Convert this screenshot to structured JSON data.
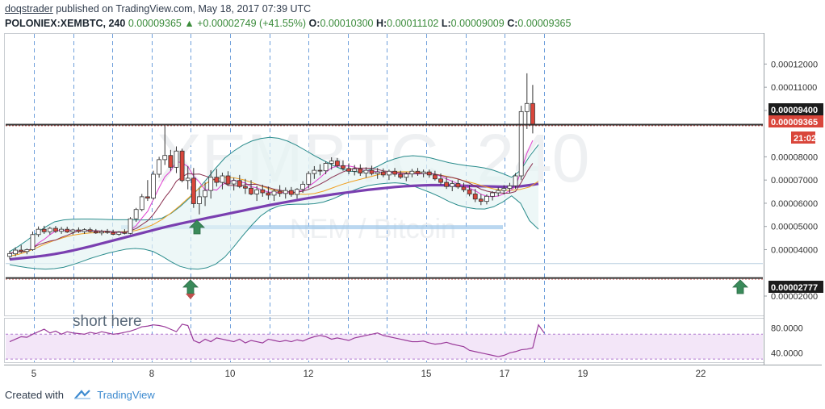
{
  "header": {
    "author": "doqstrader",
    "published_text": "published on TradingView.com, May 18, 2017 07:39 UTC",
    "symbol": "POLONIEX:XEMBTC, 240",
    "last": "0.00009365",
    "change": "+0.00002749 (+41.55%)",
    "o_label": "O:",
    "o_value": "0.00010300",
    "h_label": "H:",
    "h_value": "0.00011102",
    "l_label": "L:",
    "l_value": "0.00009009",
    "c_label": "C:",
    "c_value": "0.00009365",
    "up_arrow_icon": "triangle-up-icon"
  },
  "watermark": {
    "ticker": "XEMBTC, 240",
    "pair": "NEM / Bitcoin"
  },
  "annotation_text": "short here",
  "footer": {
    "created_with": "Created with",
    "brand": "TradingView",
    "logo_icon": "tradingview-cloud-icon"
  },
  "colors": {
    "up_candle": "#ffffff",
    "down_candle": "#d9463b",
    "bollinger": "#2a8c8c",
    "ma_purple": "#7a3fb0",
    "ma_magenta": "#e040d0",
    "ma_orange": "#f0a020",
    "rsi_line": "#9a3a9a",
    "rsi_band": "#f3e6f8",
    "arrow_green": "#3a8a5a",
    "price_label_dark": "#1c1c1c",
    "price_label_red": "#d9463b"
  },
  "chart_data": {
    "type": "candlestick",
    "x_ticks": [
      "5",
      "8",
      "10",
      "12",
      "15",
      "17",
      "19",
      "22"
    ],
    "y_ticks": [
      "0.00012000",
      "0.00011000",
      "0.00010000",
      "0.00008000",
      "0.00007000",
      "0.00006000",
      "0.00005000",
      "0.00004000",
      "0.00002000"
    ],
    "ylim": [
      1.2e-05,
      0.000133
    ],
    "price_labels": [
      {
        "text": "0.00009400",
        "value": 9.4e-05,
        "style": "dark"
      },
      {
        "text": "0.00009365",
        "value": 9.365e-05,
        "style": "red"
      },
      {
        "text": "21:02",
        "value": 9.05e-05,
        "style": "red"
      },
      {
        "text": "0.00002777",
        "value": 2.777e-05,
        "style": "dark"
      }
    ],
    "horizontal_lines": [
      9.39e-05,
      2.777e-05
    ],
    "support_zone": 4.95e-05,
    "light_line": 3.4e-05,
    "candles": [
      [
        3.71e-05,
        3.95e-05,
        3.58e-05,
        3.83e-05
      ],
      [
        3.82e-05,
        4.1e-05,
        3.72e-05,
        3.98e-05
      ],
      [
        3.98e-05,
        4.2e-05,
        3.85e-05,
        3.92e-05
      ],
      [
        3.92e-05,
        4.05e-05,
        3.8e-05,
        4e-05
      ],
      [
        4e-05,
        4.78e-05,
        3.95e-05,
        4.65e-05
      ],
      [
        4.65e-05,
        5e-05,
        4.55e-05,
        4.88e-05
      ],
      [
        4.88e-05,
        5.03e-05,
        4.68e-05,
        4.77e-05
      ],
      [
        4.77e-05,
        4.98e-05,
        4.65e-05,
        4.92e-05
      ],
      [
        4.92e-05,
        5.02e-05,
        4.72e-05,
        4.79e-05
      ],
      [
        4.79e-05,
        4.98e-05,
        4.68e-05,
        4.88e-05
      ],
      [
        4.88e-05,
        4.99e-05,
        4.72e-05,
        4.76e-05
      ],
      [
        4.76e-05,
        4.9e-05,
        4.65e-05,
        4.85e-05
      ],
      [
        4.85e-05,
        4.96e-05,
        4.72e-05,
        4.78e-05
      ],
      [
        4.78e-05,
        4.92e-05,
        4.68e-05,
        4.86e-05
      ],
      [
        4.86e-05,
        4.95e-05,
        4.74e-05,
        4.78e-05
      ],
      [
        4.78e-05,
        4.89e-05,
        4.68e-05,
        4.72e-05
      ],
      [
        4.72e-05,
        4.86e-05,
        4.62e-05,
        4.78e-05
      ],
      [
        4.78e-05,
        4.89e-05,
        4.68e-05,
        4.74e-05
      ],
      [
        4.74e-05,
        4.86e-05,
        4.62e-05,
        4.66e-05
      ],
      [
        4.66e-05,
        4.8e-05,
        4.6e-05,
        4.75e-05
      ],
      [
        4.75e-05,
        4.88e-05,
        4.66e-05,
        4.7e-05
      ],
      [
        4.7e-05,
        5.4e-05,
        4.66e-05,
        5.33e-05
      ],
      [
        5.33e-05,
        5.8e-05,
        5.2e-05,
        5.73e-05
      ],
      [
        5.73e-05,
        6.4e-05,
        5.65e-05,
        6.28e-05
      ],
      [
        6.28e-05,
        7e-05,
        6.1e-05,
        6.22e-05
      ],
      [
        6.22e-05,
        7.4e-05,
        6.15e-05,
        7.25e-05
      ],
      [
        7.25e-05,
        8e-05,
        7.1e-05,
        7.88e-05
      ],
      [
        7.88e-05,
        9.4e-05,
        7.65e-05,
        8.06e-05
      ],
      [
        8.06e-05,
        8.3e-05,
        7.4e-05,
        7.55e-05
      ],
      [
        7.55e-05,
        8.45e-05,
        7.3e-05,
        8.25e-05
      ],
      [
        8.25e-05,
        8.35e-05,
        6.9e-05,
        6.98e-05
      ],
      [
        6.98e-05,
        7.6e-05,
        6.6e-05,
        7.08e-05
      ],
      [
        7.08e-05,
        7.52e-05,
        5.8e-05,
        5.98e-05
      ],
      [
        5.98e-05,
        6.65e-05,
        5.52e-05,
        6.28e-05
      ],
      [
        6.28e-05,
        6.9e-05,
        5.88e-05,
        6.55e-05
      ],
      [
        6.55e-05,
        7.42e-05,
        6.2e-05,
        7.12e-05
      ],
      [
        7.12e-05,
        7.48e-05,
        6.72e-05,
        6.9e-05
      ],
      [
        6.9e-05,
        7.32e-05,
        6.6e-05,
        7.18e-05
      ],
      [
        7.18e-05,
        7.38e-05,
        6.75e-05,
        6.83e-05
      ],
      [
        6.83e-05,
        7.1e-05,
        6.55e-05,
        6.98e-05
      ],
      [
        6.98e-05,
        7.22e-05,
        6.65e-05,
        6.72e-05
      ],
      [
        6.72e-05,
        7.05e-05,
        6.4e-05,
        6.65e-05
      ],
      [
        6.65e-05,
        7e-05,
        6.35e-05,
        6.4e-05
      ],
      [
        6.4e-05,
        6.75e-05,
        6.1e-05,
        6.58e-05
      ],
      [
        6.58e-05,
        6.8e-05,
        6.28e-05,
        6.45e-05
      ],
      [
        6.45e-05,
        6.72e-05,
        6.15e-05,
        6.35e-05
      ],
      [
        6.35e-05,
        6.62e-05,
        6.1e-05,
        6.52e-05
      ],
      [
        6.52e-05,
        6.78e-05,
        6.28e-05,
        6.42e-05
      ],
      [
        6.42e-05,
        6.68e-05,
        6.2e-05,
        6.55e-05
      ],
      [
        6.55e-05,
        6.7e-05,
        6.28e-05,
        6.38e-05
      ],
      [
        6.38e-05,
        6.65e-05,
        6.2e-05,
        6.6e-05
      ],
      [
        6.6e-05,
        6.95e-05,
        6.45e-05,
        6.82e-05
      ],
      [
        6.82e-05,
        7.38e-05,
        6.65e-05,
        7.28e-05
      ],
      [
        7.28e-05,
        7.6e-05,
        7.05e-05,
        7.42e-05
      ],
      [
        7.42e-05,
        7.68e-05,
        7.2e-05,
        7.4e-05
      ],
      [
        7.4e-05,
        7.8e-05,
        7.25e-05,
        7.72e-05
      ],
      [
        7.72e-05,
        7.98e-05,
        7.45e-05,
        7.82e-05
      ],
      [
        7.82e-05,
        7.95e-05,
        7.55e-05,
        7.62e-05
      ],
      [
        7.62e-05,
        7.85e-05,
        7.4e-05,
        7.5e-05
      ],
      [
        7.5e-05,
        7.72e-05,
        7.25e-05,
        7.38e-05
      ],
      [
        7.38e-05,
        7.65e-05,
        7.2e-05,
        7.48e-05
      ],
      [
        7.48e-05,
        7.68e-05,
        7.18e-05,
        7.3e-05
      ],
      [
        7.3e-05,
        7.55e-05,
        7.1e-05,
        7.42e-05
      ],
      [
        7.42e-05,
        7.62e-05,
        7.2e-05,
        7.28e-05
      ],
      [
        7.28e-05,
        7.52e-05,
        7.05e-05,
        7.35e-05
      ],
      [
        7.35e-05,
        7.5e-05,
        7.12e-05,
        7.22e-05
      ],
      [
        7.22e-05,
        7.45e-05,
        7e-05,
        7.38e-05
      ],
      [
        7.38e-05,
        7.52e-05,
        7.15e-05,
        7.25e-05
      ],
      [
        7.25e-05,
        7.4e-05,
        7.05e-05,
        7.12e-05
      ],
      [
        7.12e-05,
        7.35e-05,
        6.95e-05,
        7.26e-05
      ],
      [
        7.26e-05,
        7.48e-05,
        7.12e-05,
        7.38e-05
      ],
      [
        7.38e-05,
        7.52e-05,
        7.18e-05,
        7.28e-05
      ],
      [
        7.28e-05,
        7.45e-05,
        7.12e-05,
        7.35e-05
      ],
      [
        7.35e-05,
        7.45e-05,
        7.1e-05,
        7.22e-05
      ],
      [
        7.22e-05,
        7.4e-05,
        6.98e-05,
        7.05e-05
      ],
      [
        7.05e-05,
        7.28e-05,
        6.8e-05,
        6.9e-05
      ],
      [
        6.9e-05,
        7.12e-05,
        6.62e-05,
        6.72e-05
      ],
      [
        6.72e-05,
        6.98e-05,
        6.52e-05,
        6.85e-05
      ],
      [
        6.85e-05,
        7.02e-05,
        6.62e-05,
        6.7e-05
      ],
      [
        6.7e-05,
        6.88e-05,
        6.48e-05,
        6.58e-05
      ],
      [
        6.58e-05,
        6.78e-05,
        6.3e-05,
        6.4e-05
      ],
      [
        6.4e-05,
        6.62e-05,
        6.05e-05,
        6.18e-05
      ],
      [
        6.18e-05,
        6.4e-05,
        5.92e-05,
        6.08e-05
      ],
      [
        6.08e-05,
        6.38e-05,
        5.95e-05,
        6.3e-05
      ],
      [
        6.3e-05,
        6.52e-05,
        6.12e-05,
        6.45e-05
      ],
      [
        6.45e-05,
        6.68e-05,
        6.3e-05,
        6.55e-05
      ],
      [
        6.55e-05,
        6.78e-05,
        6.38e-05,
        6.64e-05
      ],
      [
        6.64e-05,
        6.88e-05,
        6.45e-05,
        6.75e-05
      ],
      [
        6.75e-05,
        7.3e-05,
        6.62e-05,
        7.18e-05
      ],
      [
        7.18e-05,
        0.000102,
        7e-05,
        9.95e-05
      ],
      [
        9.95e-05,
        0.000116,
        9.2e-05,
        0.000103
      ],
      [
        0.000103,
        0.000111,
        9.01e-05,
        9.365e-05
      ]
    ],
    "bollinger_upper": [
      3.92e-05,
      4.15e-05,
      4.42e-05,
      4.72e-05,
      4.98e-05,
      5.2e-05,
      5.28e-05,
      5.31e-05,
      5.32e-05,
      5.32e-05,
      5.31e-05,
      5.3e-05,
      5.29e-05,
      5.29e-05,
      5.28e-05,
      5.28e-05,
      5.29e-05,
      5.36e-05,
      5.56e-05,
      5.85e-05,
      6.2e-05,
      6.6e-05,
      7.05e-05,
      7.52e-05,
      7.95e-05,
      8.25e-05,
      8.5e-05,
      8.68e-05,
      8.79e-05,
      8.84e-05,
      8.8e-05,
      8.68e-05,
      8.5e-05,
      8.28e-05,
      8.05e-05,
      7.85e-05,
      7.65e-05,
      7.48e-05,
      7.38e-05,
      7.35e-05,
      7.42e-05,
      7.58e-05,
      7.78e-05,
      7.92e-05,
      8.02e-05,
      8.05e-05,
      8.02e-05,
      7.95e-05,
      7.85e-05,
      7.75e-05,
      7.68e-05,
      7.62e-05,
      7.58e-05,
      7.52e-05,
      7.42e-05,
      7.28e-05,
      7.12e-05,
      7.42e-05,
      8.02e-05,
      8.52e-05
    ],
    "bollinger_lower": [
      3.35e-05,
      3.28e-05,
      3.22e-05,
      3.18e-05,
      3.16e-05,
      3.18e-05,
      3.24e-05,
      3.35e-05,
      3.48e-05,
      3.62e-05,
      3.74e-05,
      3.85e-05,
      3.94e-05,
      4.02e-05,
      4.05e-05,
      4.02e-05,
      3.92e-05,
      3.72e-05,
      3.48e-05,
      3.28e-05,
      3.18e-05,
      3.16e-05,
      3.22e-05,
      3.38e-05,
      3.68e-05,
      4.12e-05,
      4.6e-05,
      5.05e-05,
      5.45e-05,
      5.72e-05,
      5.88e-05,
      5.94e-05,
      5.96e-05,
      5.96e-05,
      5.98e-05,
      6.05e-05,
      6.18e-05,
      6.35e-05,
      6.5e-05,
      6.65e-05,
      6.76e-05,
      6.82e-05,
      6.86e-05,
      6.88e-05,
      6.85e-05,
      6.75e-05,
      6.6e-05,
      6.45e-05,
      6.28e-05,
      6.08e-05,
      5.92e-05,
      5.82e-05,
      5.76e-05,
      5.75e-05,
      5.85e-05,
      6.05e-05,
      6.32e-05,
      6e-05,
      5.25e-05,
      4.88e-05
    ],
    "ma_long": [
      3.58e-05,
      3.62e-05,
      3.66e-05,
      3.7e-05,
      3.75e-05,
      3.81e-05,
      3.88e-05,
      3.96e-05,
      4.05e-05,
      4.14e-05,
      4.24e-05,
      4.34e-05,
      4.44e-05,
      4.54e-05,
      4.64e-05,
      4.74e-05,
      4.84e-05,
      4.94e-05,
      5.03e-05,
      5.12e-05,
      5.2e-05,
      5.28e-05,
      5.36e-05,
      5.44e-05,
      5.52e-05,
      5.6e-05,
      5.68e-05,
      5.76e-05,
      5.84e-05,
      5.92e-05,
      5.99e-05,
      6.06e-05,
      6.13e-05,
      6.2e-05,
      6.26e-05,
      6.32e-05,
      6.38e-05,
      6.43e-05,
      6.48e-05,
      6.53e-05,
      6.58e-05,
      6.62e-05,
      6.66e-05,
      6.7e-05,
      6.73e-05,
      6.75e-05,
      6.77e-05,
      6.78e-05,
      6.78e-05,
      6.77e-05,
      6.76e-05,
      6.75e-05,
      6.74e-05,
      6.73e-05,
      6.72e-05,
      6.71e-05,
      6.71e-05,
      6.73e-05,
      6.78e-05,
      6.84e-05
    ],
    "ma_mid": [
      3.72e-05,
      3.8e-05,
      3.92e-05,
      4.08e-05,
      4.25e-05,
      4.4e-05,
      4.52e-05,
      4.62e-05,
      4.68e-05,
      4.72e-05,
      4.74e-05,
      4.75e-05,
      4.76e-05,
      4.78e-05,
      4.82e-05,
      4.92e-05,
      5.08e-05,
      5.3e-05,
      5.58e-05,
      5.9e-05,
      6.25e-05,
      6.6e-05,
      6.88e-05,
      7.05e-05,
      7.12e-05,
      7.1e-05,
      7.02e-05,
      6.9e-05,
      6.75e-05,
      6.62e-05,
      6.52e-05,
      6.45e-05,
      6.4e-05,
      6.38e-05,
      6.42e-05,
      6.52e-05,
      6.66e-05,
      6.8e-05,
      6.92e-05,
      7.02e-05,
      7.12e-05,
      7.22e-05,
      7.3e-05,
      7.35e-05,
      7.36e-05,
      7.35e-05,
      7.32e-05,
      7.28e-05,
      7.22e-05,
      7.14e-05,
      7.04e-05,
      6.94e-05,
      6.84e-05,
      6.72e-05,
      6.62e-05,
      6.56e-05,
      6.56e-05,
      6.6e-05,
      6.7e-05,
      6.95e-05
    ],
    "rsi": {
      "yticks": [
        "80.0000",
        "40.0000"
      ],
      "ylim": [
        25,
        95
      ],
      "band": [
        30,
        70
      ],
      "values": [
        58,
        62,
        66,
        65,
        70,
        74,
        78,
        72,
        75,
        70,
        74,
        72,
        71,
        70,
        73,
        71,
        74,
        72,
        70,
        71,
        73,
        75,
        78,
        82,
        83,
        85,
        84,
        82,
        78,
        74,
        86,
        84,
        60,
        56,
        62,
        58,
        64,
        62,
        60,
        58,
        62,
        56,
        60,
        58,
        56,
        62,
        60,
        58,
        60,
        58,
        61,
        59,
        63,
        66,
        68,
        66,
        62,
        64,
        62,
        60,
        64,
        66,
        68,
        70,
        72,
        68,
        66,
        64,
        62,
        60,
        58,
        58,
        59,
        56,
        54,
        55,
        57,
        54,
        52,
        50,
        44,
        42,
        40,
        38,
        36,
        34,
        36,
        40,
        42,
        45,
        46,
        48,
        85,
        72
      ]
    }
  }
}
